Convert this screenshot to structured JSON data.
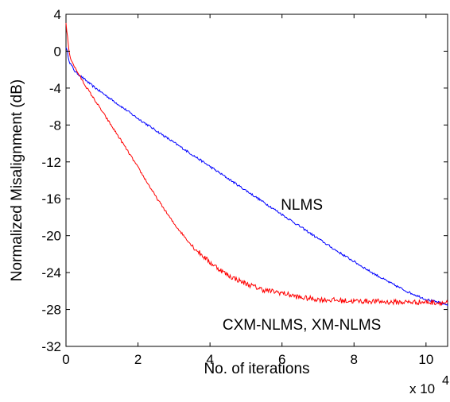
{
  "chart_data": {
    "type": "line",
    "title": "",
    "xlabel": "No. of iterations",
    "ylabel": "Normalized Misalignment (dB)",
    "x_multiplier_label": "x 10",
    "x_multiplier_exponent": "4",
    "xlim": [
      0,
      10.6
    ],
    "ylim": [
      -32,
      4
    ],
    "xticks": [
      0,
      2,
      4,
      6,
      8,
      10
    ],
    "yticks": [
      4,
      0,
      -4,
      -8,
      -12,
      -16,
      -20,
      -24,
      -28,
      -32
    ],
    "grid": false,
    "x": [
      0,
      0.1,
      0.25,
      0.5,
      0.75,
      1,
      1.25,
      1.5,
      2,
      2.5,
      3,
      3.5,
      4,
      4.5,
      5,
      5.5,
      6,
      6.5,
      7,
      7.5,
      8,
      8.5,
      9,
      9.5,
      10,
      10.6
    ],
    "series": [
      {
        "color": "#0000ff",
        "values": [
          0.5,
          -1.2,
          -2.2,
          -3.0,
          -3.8,
          -4.5,
          -5.2,
          -5.9,
          -7.3,
          -8.6,
          -9.9,
          -11.2,
          -12.5,
          -13.8,
          -15.1,
          -16.4,
          -17.7,
          -19.0,
          -20.3,
          -21.6,
          -22.8,
          -24.0,
          -25.1,
          -26.1,
          -26.9,
          -27.5
        ]
      },
      {
        "color": "#ff0000",
        "values": [
          3.0,
          -0.5,
          -1.8,
          -3.5,
          -5.0,
          -6.5,
          -8.0,
          -9.5,
          -12.6,
          -15.8,
          -18.7,
          -21.1,
          -22.9,
          -24.3,
          -25.2,
          -25.9,
          -26.2,
          -26.7,
          -26.9,
          -27.0,
          -27.1,
          -27.1,
          -27.2,
          -27.2,
          -27.2,
          -27.3
        ]
      }
    ],
    "annotations": [
      {
        "text": "NLMS",
        "x": 6.55,
        "y": -17.2
      },
      {
        "text": "CXM-NLMS, XM-NLMS",
        "x": 6.55,
        "y": -30.2
      }
    ]
  }
}
